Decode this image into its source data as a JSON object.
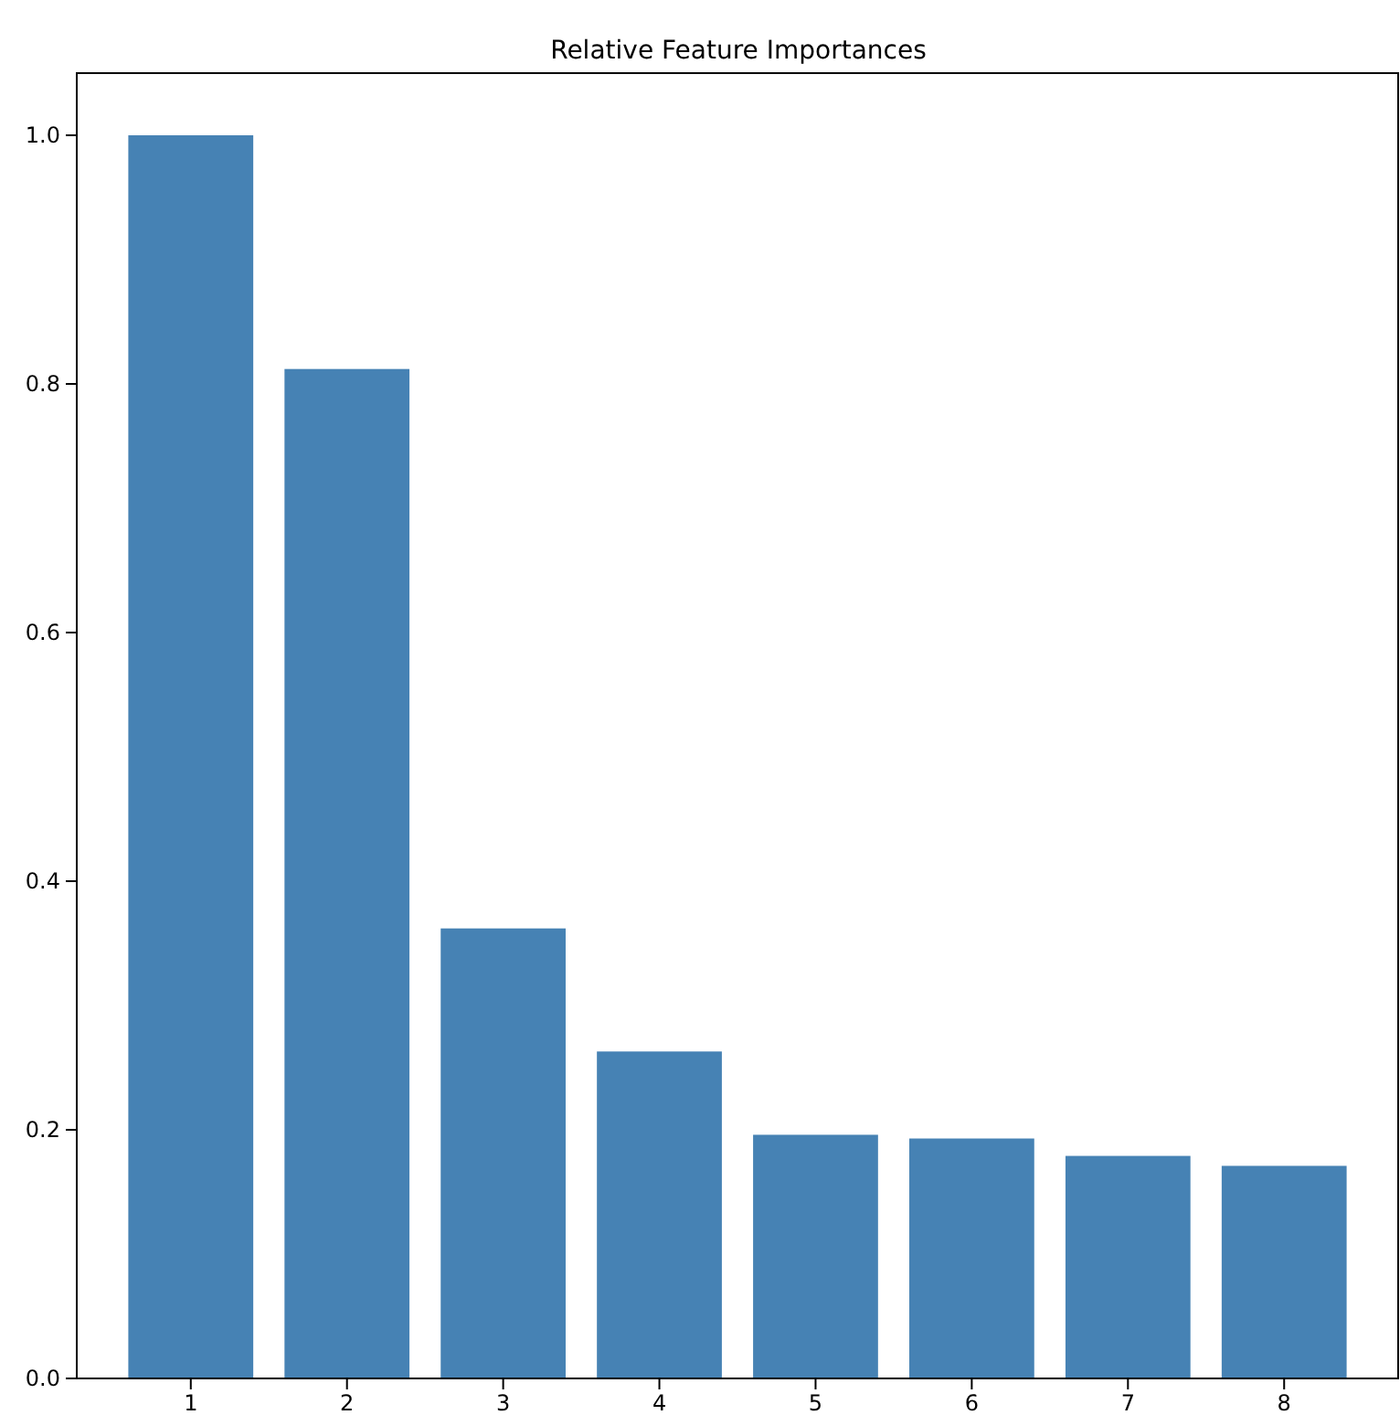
{
  "chart_data": {
    "type": "bar",
    "title": "Relative Feature Importances",
    "categories": [
      "1",
      "2",
      "3",
      "4",
      "5",
      "6",
      "7",
      "8"
    ],
    "values": [
      1.0,
      0.812,
      0.362,
      0.263,
      0.196,
      0.193,
      0.179,
      0.171
    ],
    "color": "#4682b4",
    "ylim": [
      0,
      1.05
    ],
    "yticks": [
      {
        "value": 0,
        "label": "0.0"
      },
      {
        "value": 0.2,
        "label": "0.2"
      },
      {
        "value": 0.4,
        "label": "0.4"
      },
      {
        "value": 0.6,
        "label": "0.6"
      },
      {
        "value": 0.8,
        "label": "0.8"
      },
      {
        "value": 1.0,
        "label": "1.0"
      }
    ],
    "grid": false
  }
}
